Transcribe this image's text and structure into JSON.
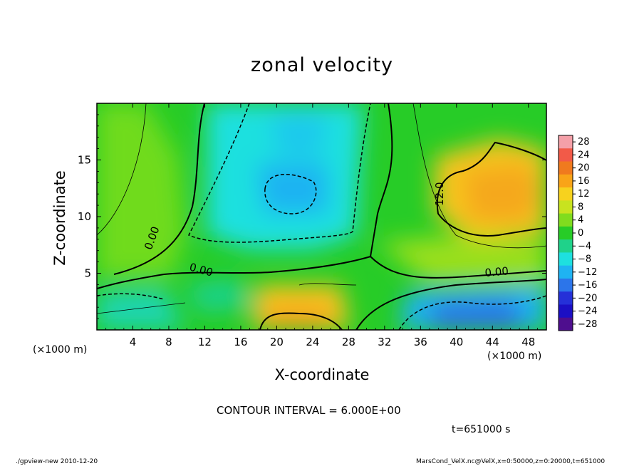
{
  "chart_data": {
    "type": "heatmap",
    "title": "zonal velocity",
    "xlabel": "X-coordinate",
    "ylabel": "Z-coordinate",
    "x_unit": "(×1000 m)",
    "xlim": [
      0,
      50
    ],
    "ylim": [
      0,
      20
    ],
    "x_ticks": [
      4,
      8,
      12,
      16,
      20,
      24,
      28,
      32,
      36,
      40,
      44,
      48
    ],
    "y_ticks": [
      5,
      10,
      15
    ],
    "colorbar": {
      "levels": [
        28,
        24,
        20,
        16,
        12,
        8,
        4,
        0,
        -4,
        -8,
        -12,
        -16,
        -20,
        -24,
        -28
      ],
      "colors": [
        "#f4a0a8",
        "#f25a48",
        "#f07a1e",
        "#f9a418",
        "#f7d21e",
        "#c8e31f",
        "#80dc1e",
        "#27cc27",
        "#1fd28a",
        "#1ee0df",
        "#1fb3f2",
        "#2c75ea",
        "#2530d8",
        "#1b0fc4",
        "#4e0e8e"
      ]
    },
    "contour_labels": [
      "0.00",
      "0.00",
      "0.00",
      "12.0"
    ],
    "contour_interval_text": "CONTOUR INTERVAL = 6.000E+00",
    "time_text": "t=651000 s",
    "regions": [
      {
        "x": 9,
        "z": 6,
        "value": 1
      },
      {
        "x": 24,
        "z": 15,
        "value": -9
      },
      {
        "x": 22,
        "z": 12,
        "value": -12
      },
      {
        "x": 24,
        "z": 1,
        "value": 13
      },
      {
        "x": 44,
        "z": 11.5,
        "value": 16
      },
      {
        "x": 44,
        "z": 1.2,
        "value": -17
      },
      {
        "x": 2,
        "z": 1.5,
        "value": -8
      },
      {
        "x": 40,
        "z": 6,
        "value": 5
      }
    ]
  },
  "footer": {
    "left": "./gpview-new  2010-12-20",
    "right": "MarsCond_VelX.nc@VelX,x=0:50000,z=0:20000,t=651000"
  }
}
